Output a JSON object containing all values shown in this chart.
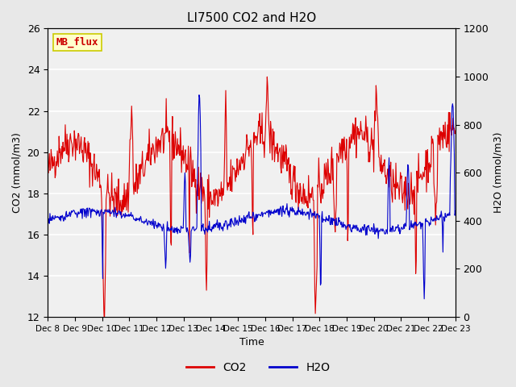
{
  "title": "LI7500 CO2 and H2O",
  "xlabel": "Time",
  "ylabel_left": "CO2 (mmol/m3)",
  "ylabel_right": "H2O (mmol/m3)",
  "annotation_text": "MB_flux",
  "annotation_bg": "#ffffcc",
  "annotation_border": "#cccc00",
  "annotation_text_color": "#cc0000",
  "co2_color": "#dd0000",
  "h2o_color": "#0000cc",
  "ylim_left": [
    12,
    26
  ],
  "ylim_right": [
    0,
    1200
  ],
  "yticks_left": [
    12,
    14,
    16,
    18,
    20,
    22,
    24,
    26
  ],
  "yticks_right": [
    0,
    200,
    400,
    600,
    800,
    1000,
    1200
  ],
  "xtick_labels": [
    "Dec 8",
    "Dec 9",
    "Dec 10",
    "Dec 11",
    "Dec 12",
    "Dec 13",
    "Dec 14",
    "Dec 15",
    "Dec 16",
    "Dec 17",
    "Dec 18",
    "Dec 19",
    "Dec 20",
    "Dec 21",
    "Dec 22",
    "Dec 23"
  ],
  "bg_color": "#e8e8e8",
  "plot_bg_color": "#f0f0f0",
  "grid_color": "#ffffff",
  "seed": 42,
  "n_days": 15,
  "pts_per_day": 48
}
